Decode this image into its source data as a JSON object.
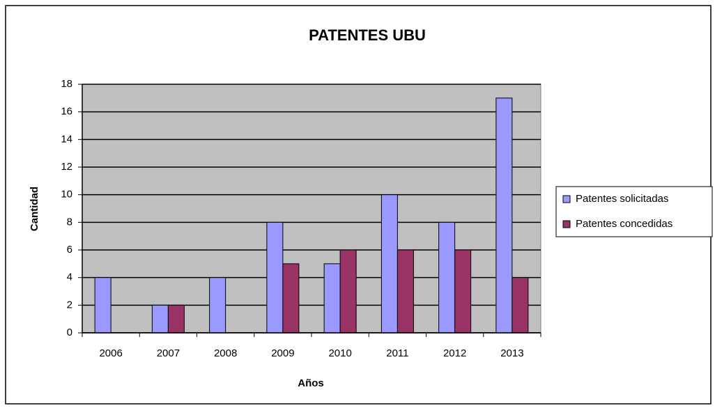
{
  "chart_data": {
    "type": "bar",
    "title": "PATENTES UBU",
    "x_label": "Años",
    "y_label": "Cantidad",
    "categories": [
      "2006",
      "2007",
      "2008",
      "2009",
      "2010",
      "2011",
      "2012",
      "2013"
    ],
    "series": [
      {
        "name": "Patentes solicitadas",
        "color": "#9999ff",
        "values": [
          4,
          2,
          4,
          8,
          5,
          10,
          8,
          17
        ]
      },
      {
        "name": "Patentes concedidas",
        "color": "#993366",
        "values": [
          0,
          2,
          0,
          5,
          6,
          6,
          6,
          4
        ]
      }
    ],
    "ylim": [
      0,
      18
    ],
    "yticks": [
      0,
      2,
      4,
      6,
      8,
      10,
      12,
      14,
      16,
      18
    ],
    "grid": true,
    "legend": "right"
  }
}
